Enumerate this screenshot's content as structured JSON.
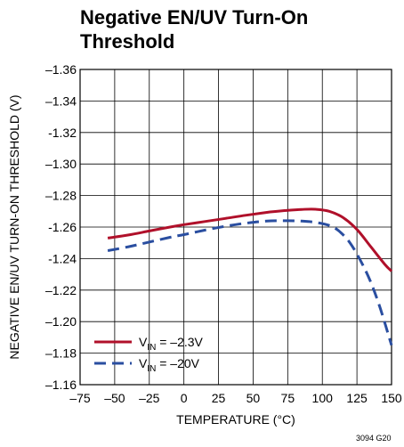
{
  "chart_data": {
    "type": "line",
    "title": "Negative EN/UV Turn-On Threshold",
    "xlabel": "TEMPERATURE (°C)",
    "ylabel": "NEGATIVE EN/UV TURN-ON THRESHOLD (V)",
    "xlim": [
      -75,
      150
    ],
    "ylim": [
      -1.16,
      -1.36
    ],
    "y_axis_inverted": true,
    "x_ticks": [
      -75,
      -50,
      -25,
      0,
      25,
      50,
      75,
      100,
      125,
      150
    ],
    "x_tick_labels": [
      "–75",
      "–50",
      "–25",
      "0",
      "25",
      "50",
      "75",
      "100",
      "125",
      "150"
    ],
    "y_ticks": [
      -1.36,
      -1.34,
      -1.32,
      -1.3,
      -1.28,
      -1.26,
      -1.24,
      -1.22,
      -1.2,
      -1.18,
      -1.16
    ],
    "y_tick_labels": [
      "–1.36",
      "–1.34",
      "-1.32",
      "–1.30",
      "–1.28",
      "-1.26",
      "-1.24",
      "–1.22",
      "–1.20",
      "–1.18",
      "–1.16"
    ],
    "grid": true,
    "legend_position": "bottom-left",
    "series": [
      {
        "name": "V_IN = –2.3V",
        "name_main": "V",
        "name_sub": "IN",
        "name_rest": " = –2.3V",
        "color": "#b0102a",
        "dash": "solid",
        "x": [
          -55,
          -40,
          -25,
          -10,
          0,
          15,
          30,
          45,
          60,
          75,
          85,
          95,
          105,
          115,
          125,
          135,
          145,
          150
        ],
        "y": [
          -1.253,
          -1.255,
          -1.2575,
          -1.26,
          -1.2615,
          -1.2635,
          -1.2655,
          -1.2675,
          -1.2693,
          -1.2706,
          -1.2712,
          -1.2713,
          -1.27,
          -1.266,
          -1.2585,
          -1.2475,
          -1.2365,
          -1.232
        ]
      },
      {
        "name": "V_IN = –20V",
        "name_main": "V",
        "name_sub": "IN",
        "name_rest": " = –20V",
        "color": "#2a4ea0",
        "dash": "dashed",
        "x": [
          -55,
          -40,
          -25,
          -10,
          0,
          15,
          30,
          45,
          60,
          75,
          85,
          95,
          105,
          112,
          120,
          128,
          135,
          142,
          150
        ],
        "y": [
          -1.245,
          -1.2475,
          -1.2505,
          -1.2535,
          -1.2552,
          -1.258,
          -1.2605,
          -1.2625,
          -1.2638,
          -1.264,
          -1.2638,
          -1.263,
          -1.261,
          -1.2575,
          -1.25,
          -1.238,
          -1.225,
          -1.208,
          -1.185
        ]
      }
    ]
  },
  "figure_id": "3094 G20"
}
